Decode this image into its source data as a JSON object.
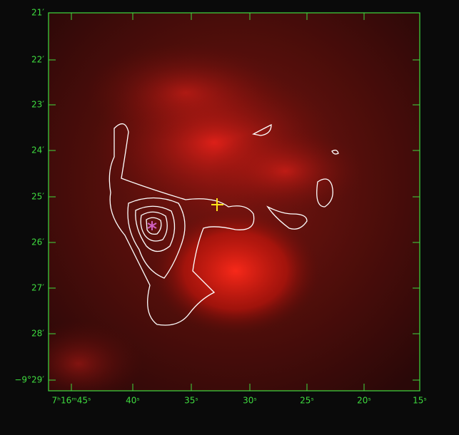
{
  "axes": {
    "y_labels": [
      "21′",
      "22′",
      "23′",
      "24′",
      "25′",
      "26′",
      "27′",
      "28′",
      "−9°29′"
    ],
    "x_labels": [
      "7ʰ16ᵐ45ˢ",
      "40ˢ",
      "35ˢ",
      "30ˢ",
      "25ˢ",
      "20ˢ",
      "15ˢ"
    ]
  }
}
